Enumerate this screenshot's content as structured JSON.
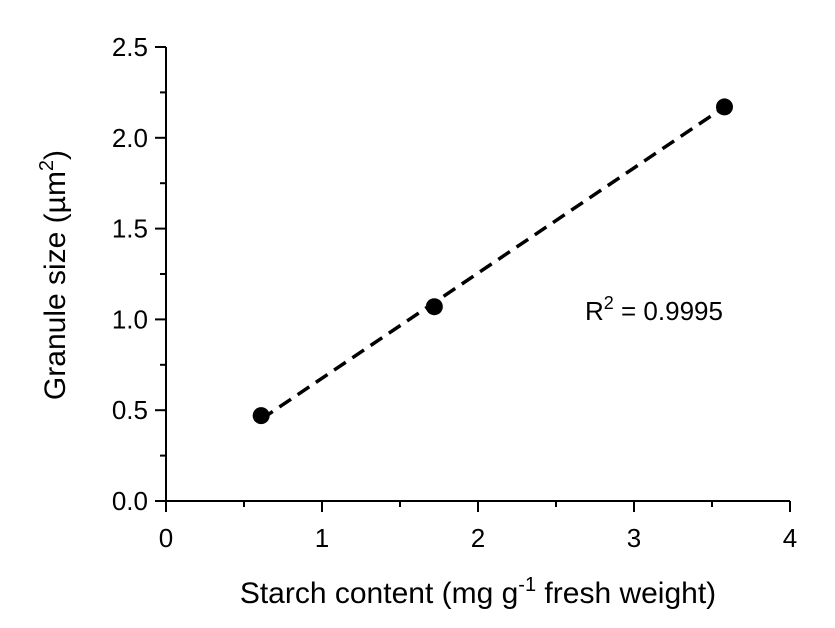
{
  "chart_data": {
    "type": "scatter",
    "xlabel": {
      "prefix": "Starch content (mg g",
      "superscript": "-1",
      "suffix": " fresh weight)"
    },
    "ylabel": {
      "prefix": "Granule size (µm",
      "superscript": "2",
      "suffix": ")"
    },
    "xlim": [
      0,
      4
    ],
    "ylim": [
      0,
      2.5
    ],
    "x_ticks": [
      0,
      1,
      2,
      3,
      4
    ],
    "x_tick_labels": [
      "0",
      "1",
      "2",
      "3",
      "4"
    ],
    "x_minor_step": 0.5,
    "y_ticks": [
      0,
      0.5,
      1.0,
      1.5,
      2.0,
      2.5
    ],
    "y_tick_labels": [
      "0.0",
      "0.5",
      "1.0",
      "1.5",
      "2.0",
      "2.5"
    ],
    "y_minor_step": 0.25,
    "grid": false,
    "series": [
      {
        "x": [
          0.61,
          1.72,
          3.58
        ],
        "y": [
          0.47,
          1.07,
          2.17
        ],
        "marker": "circle",
        "color": "#000000"
      }
    ],
    "fit_line": {
      "style": "dashed",
      "color": "#000000",
      "x": [
        0.61,
        3.58
      ],
      "y": [
        0.45,
        2.17
      ]
    },
    "annotation": {
      "prefix": "R",
      "superscript": "2",
      "suffix": " = 0.9995"
    }
  }
}
